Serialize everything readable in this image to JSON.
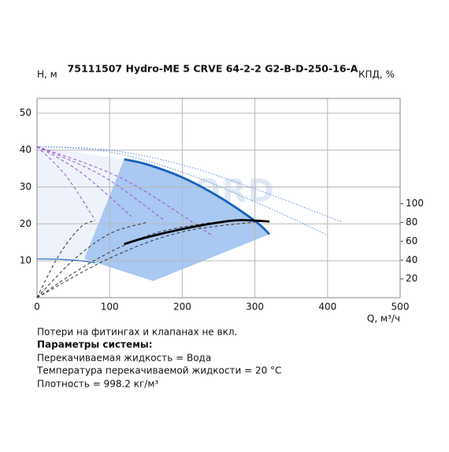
{
  "chart_data": {
    "type": "line",
    "title": "75111507 Hydro-ME 5 CRVE 64-2-2 G2-B-D-250-16-A",
    "ylabel": "H, м",
    "y2label": "КПД, %",
    "xlabel": "Q, м³/ч",
    "watermark": "VANDJORD",
    "xlim": [
      0,
      500
    ],
    "xticks": [
      0,
      100,
      200,
      300,
      400,
      500
    ],
    "ylim": [
      0,
      54
    ],
    "yticks": [
      10,
      20,
      30,
      40,
      50
    ],
    "y2lim": [
      0,
      212
    ],
    "y2ticks": [
      20,
      40,
      60,
      80,
      100
    ],
    "grid": true,
    "series": [
      {
        "style": "area",
        "color": "#edf2fb",
        "x": [
          0,
          120,
          65,
          0
        ],
        "values": [
          41,
          37.5,
          10.5,
          10.5
        ]
      },
      {
        "style": "area",
        "color": "#a9c8f2",
        "x": [
          120,
          150,
          200,
          250,
          300,
          320,
          160,
          65
        ],
        "values": [
          37.5,
          36.2,
          32.6,
          27.4,
          20.8,
          17.2,
          4.5,
          10.5
        ]
      },
      {
        "style": "dotted",
        "color": "#5a8fd6",
        "width": 1,
        "x": [
          0,
          100,
          200,
          300,
          400
        ],
        "values": [
          41,
          39.5,
          34,
          26,
          17
        ]
      },
      {
        "style": "dotted",
        "color": "#5a8fd6",
        "width": 1,
        "x": [
          0,
          100,
          200,
          300,
          420
        ],
        "values": [
          41,
          40,
          36,
          29.5,
          20.5
        ]
      },
      {
        "style": "dashed",
        "color": "#a050c8",
        "width": 1,
        "x": [
          0,
          40,
          80
        ],
        "values": [
          41,
          33,
          21
        ]
      },
      {
        "style": "dashed",
        "color": "#a050c8",
        "width": 1,
        "x": [
          0,
          60,
          130
        ],
        "values": [
          41,
          34,
          22
        ]
      },
      {
        "style": "dashed",
        "color": "#a050c8",
        "width": 1,
        "x": [
          0,
          90,
          175
        ],
        "values": [
          41,
          33,
          21
        ]
      },
      {
        "style": "dashed",
        "color": "#a050c8",
        "width": 1,
        "x": [
          0,
          120,
          240
        ],
        "values": [
          41,
          32,
          17
        ]
      },
      {
        "style": "dashed",
        "color": "#333333",
        "width": 1,
        "axis": "y2",
        "x": [
          0,
          30,
          60,
          80
        ],
        "values": [
          0,
          45,
          75,
          82
        ]
      },
      {
        "style": "dashed",
        "color": "#333333",
        "width": 1,
        "axis": "y2",
        "x": [
          0,
          50,
          100,
          150
        ],
        "values": [
          0,
          40,
          68,
          80
        ]
      },
      {
        "style": "dashed",
        "color": "#333333",
        "width": 1,
        "axis": "y2",
        "x": [
          0,
          80,
          160,
          240
        ],
        "values": [
          0,
          40,
          68,
          80
        ]
      },
      {
        "style": "dashed",
        "color": "#333333",
        "width": 1,
        "axis": "y2",
        "x": [
          0,
          100,
          200,
          320
        ],
        "values": [
          0,
          42,
          70,
          82
        ]
      },
      {
        "style": "solid",
        "color": "#2a6fd0",
        "width": 1.2,
        "x": [
          0,
          30,
          60,
          80
        ],
        "values": [
          10.5,
          10.4,
          10,
          9.4
        ]
      },
      {
        "style": "solid",
        "color": "#1560bd",
        "width": 2.8,
        "x": [
          120,
          150,
          200,
          250,
          300,
          320
        ],
        "values": [
          37.5,
          36.2,
          32.6,
          27.4,
          20.8,
          17.2
        ]
      },
      {
        "style": "solid",
        "color": "#000000",
        "width": 2.8,
        "axis": "y2",
        "x": [
          120,
          150,
          200,
          250,
          280,
          320
        ],
        "values": [
          57,
          64,
          73,
          80,
          82.5,
          81
        ]
      }
    ]
  },
  "notes": [
    "Потери на фитингах и клапанах не вкл.",
    "Параметры системы:",
    "Перекачиваемая жидкость = Вода",
    "Температура перекачиваемой жидкости = 20 °C",
    "Плотность = 998.2 кг/м³"
  ]
}
